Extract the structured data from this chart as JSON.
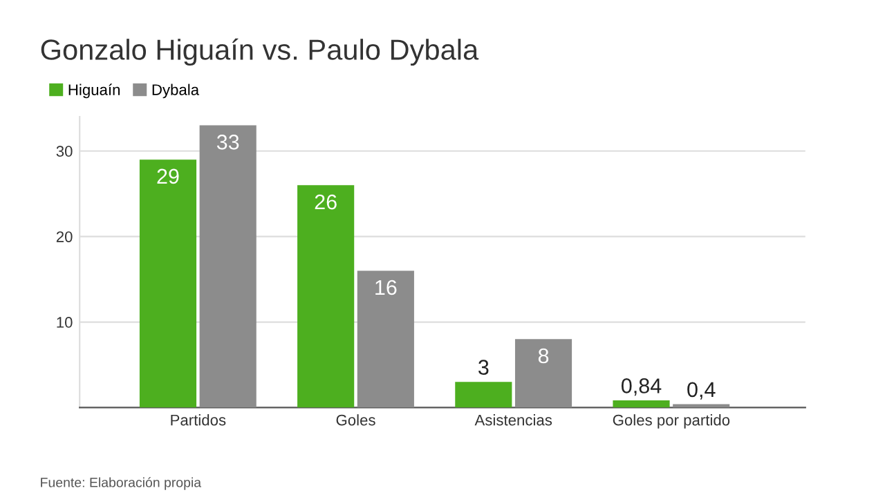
{
  "chart_data": {
    "type": "bar",
    "title": "Gonzalo Higuaín vs. Paulo Dybala",
    "categories": [
      "Partidos",
      "Goles",
      "Asistencias",
      "Goles por partido"
    ],
    "series": [
      {
        "name": "Higuaín",
        "color": "#4daf1f",
        "values": [
          29,
          26,
          3,
          0.84
        ],
        "value_labels": [
          "29",
          "26",
          "3",
          "0,84"
        ]
      },
      {
        "name": "Dybala",
        "color": "#8c8c8c",
        "values": [
          33,
          16,
          8,
          0.4
        ],
        "value_labels": [
          "33",
          "16",
          "8",
          "0,4"
        ]
      }
    ],
    "ylim": [
      0,
      34
    ],
    "yticks": [
      10,
      20,
      30
    ],
    "grid": "y",
    "legend": "top left",
    "annotations": [
      "Fuente: Elaboración propia"
    ]
  }
}
